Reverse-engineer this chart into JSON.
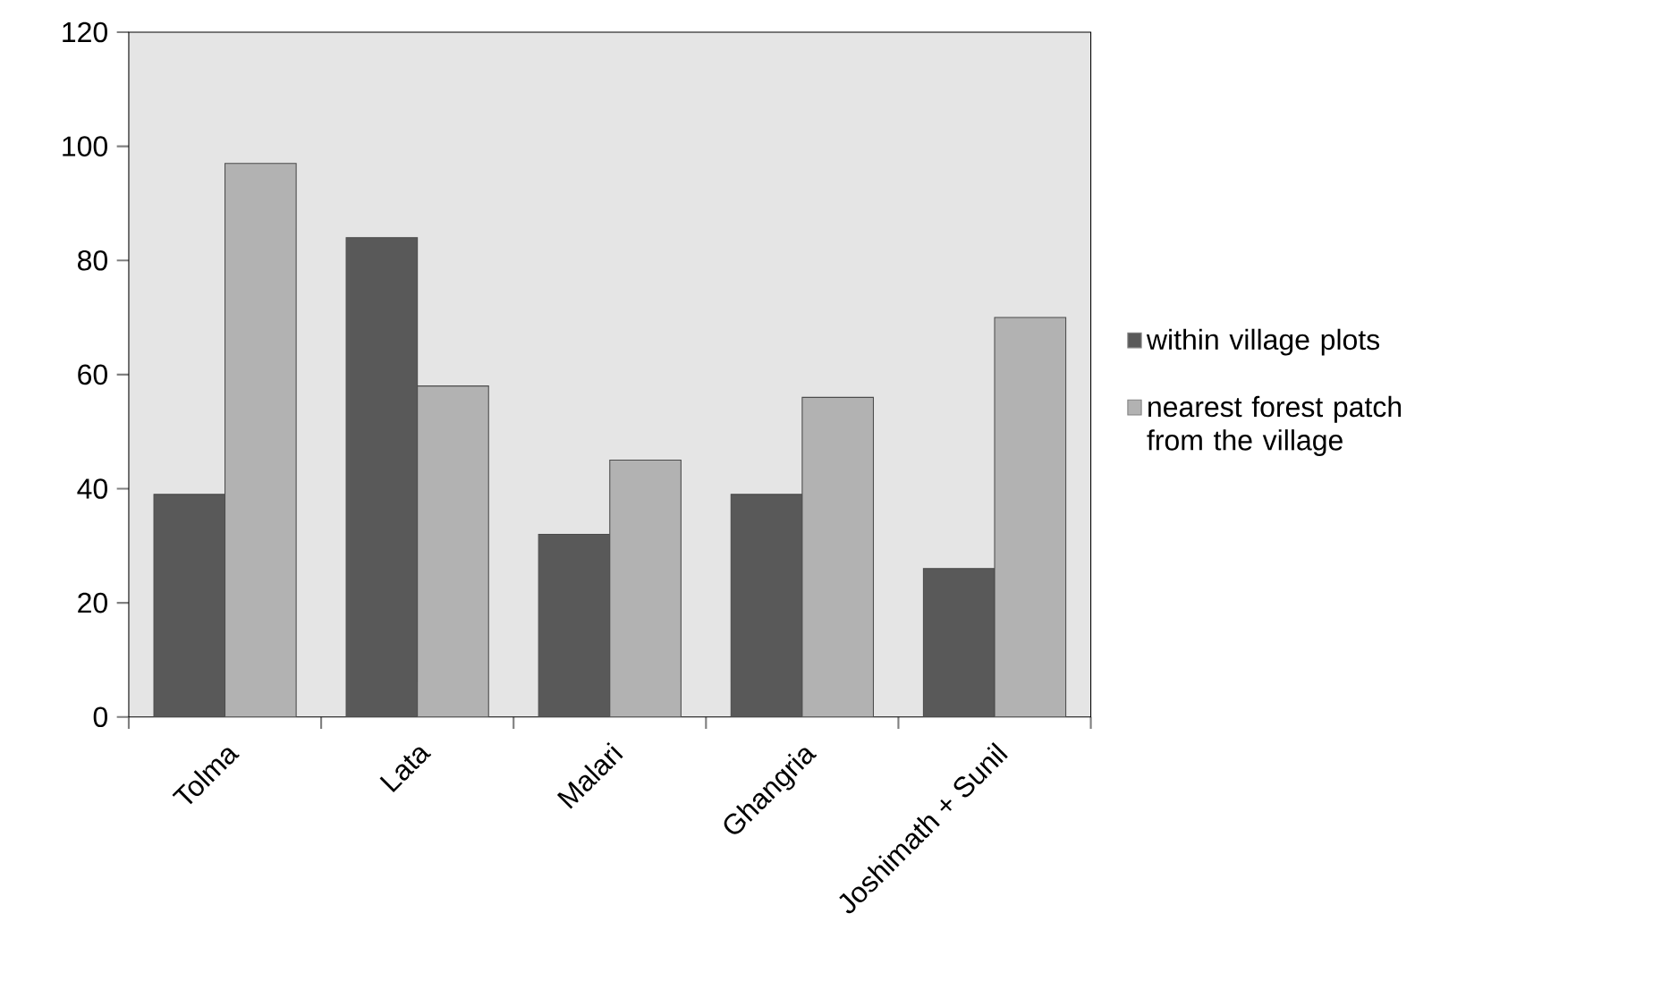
{
  "chart_data": {
    "type": "bar",
    "categories": [
      "Tolma",
      "Lata",
      "Malari",
      "Ghangria",
      "Joshimath + Sunil"
    ],
    "series": [
      {
        "name": "within village plots",
        "color": "#595959",
        "values": [
          39,
          84,
          32,
          39,
          26
        ]
      },
      {
        "name": "nearest forest patch from the village",
        "color": "#b2b2b2",
        "values": [
          97,
          58,
          45,
          56,
          70
        ]
      }
    ],
    "ylim": [
      0,
      120
    ],
    "yticks": [
      0,
      20,
      40,
      60,
      80,
      100,
      120
    ],
    "legend": "right"
  }
}
